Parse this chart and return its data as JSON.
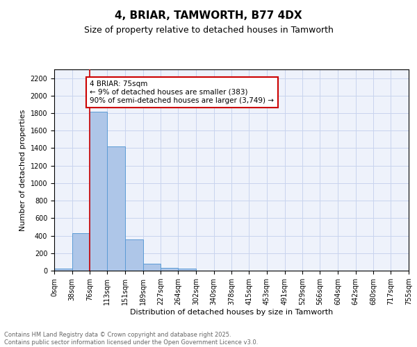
{
  "title": "4, BRIAR, TAMWORTH, B77 4DX",
  "subtitle": "Size of property relative to detached houses in Tamworth",
  "xlabel": "Distribution of detached houses by size in Tamworth",
  "ylabel": "Number of detached properties",
  "bar_color": "#aec6e8",
  "bar_edge_color": "#5b9bd5",
  "background_color": "#eef2fb",
  "grid_color": "#c8d4ee",
  "bin_edges": [
    0,
    38,
    76,
    113,
    151,
    189,
    227,
    264,
    302,
    340,
    378,
    415,
    453,
    491,
    529,
    566,
    604,
    642,
    680,
    717,
    755
  ],
  "bin_labels": [
    "0sqm",
    "38sqm",
    "76sqm",
    "113sqm",
    "151sqm",
    "189sqm",
    "227sqm",
    "264sqm",
    "302sqm",
    "340sqm",
    "378sqm",
    "415sqm",
    "453sqm",
    "491sqm",
    "529sqm",
    "566sqm",
    "604sqm",
    "642sqm",
    "680sqm",
    "717sqm",
    "755sqm"
  ],
  "bar_values": [
    20,
    430,
    1820,
    1420,
    360,
    80,
    30,
    20,
    0,
    0,
    0,
    0,
    0,
    0,
    0,
    0,
    0,
    0,
    0,
    0
  ],
  "ylim": [
    0,
    2300
  ],
  "yticks": [
    0,
    200,
    400,
    600,
    800,
    1000,
    1200,
    1400,
    1600,
    1800,
    2000,
    2200
  ],
  "red_line_x": 75,
  "annotation_text": "4 BRIAR: 75sqm\n← 9% of detached houses are smaller (383)\n90% of semi-detached houses are larger (3,749) →",
  "annotation_box_color": "#ffffff",
  "annotation_box_edge_color": "#cc0000",
  "footer_line1": "Contains HM Land Registry data © Crown copyright and database right 2025.",
  "footer_line2": "Contains public sector information licensed under the Open Government Licence v3.0.",
  "title_fontsize": 11,
  "subtitle_fontsize": 9,
  "axis_label_fontsize": 8,
  "tick_fontsize": 7,
  "annotation_fontsize": 7.5,
  "footer_fontsize": 6
}
